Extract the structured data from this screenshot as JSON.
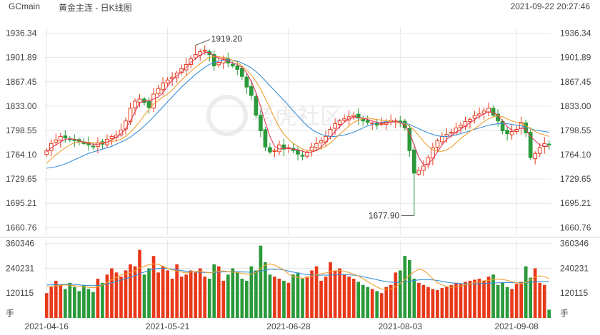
{
  "header": {
    "symbol": "GCmain",
    "title": "黄金主连 - 日K线图",
    "timestamp": "2021-09-22 20:27:46"
  },
  "watermark": "老虎社区",
  "colors": {
    "up": "#e8391a",
    "down": "#2a9a3a",
    "ma5": "#e23a5a",
    "ma10": "#f0a030",
    "ma20": "#3a8fd8",
    "grid": "#e6e6e6",
    "annotation_line": "#333333"
  },
  "chart_data": {
    "type": "candlestick",
    "price_axis": {
      "ylim": [
        1650,
        1945
      ],
      "ticks": [
        "1936.34",
        "1901.89",
        "1867.45",
        "1833.00",
        "1798.55",
        "1764.10",
        "1729.65",
        "1695.21",
        "1660.76"
      ],
      "tick_values": [
        1936.34,
        1901.89,
        1867.45,
        1833.0,
        1798.55,
        1764.1,
        1729.65,
        1695.21,
        1660.76
      ]
    },
    "volume_axis": {
      "ylim": [
        0,
        380000
      ],
      "ticks": [
        "360346",
        "240231",
        "120115",
        "手"
      ],
      "tick_values": [
        360346,
        240231,
        120115,
        0
      ]
    },
    "x_labels": [
      {
        "index": 0,
        "label": "2021-04-16"
      },
      {
        "index": 26,
        "label": "2021-05-21"
      },
      {
        "index": 52,
        "label": "2021-06-28"
      },
      {
        "index": 76,
        "label": "2021-08-03"
      },
      {
        "index": 101,
        "label": "2021-09-08"
      }
    ],
    "annotations": [
      {
        "label": "1919.20",
        "index": 32,
        "value": 1919.2,
        "kind": "high"
      },
      {
        "label": "1677.90",
        "index": 79,
        "value": 1677.9,
        "kind": "low"
      }
    ],
    "closes": [
      1770,
      1780,
      1785,
      1790,
      1788,
      1786,
      1784,
      1783,
      1780,
      1778,
      1776,
      1781,
      1779,
      1786,
      1790,
      1792,
      1799,
      1812,
      1830,
      1840,
      1843,
      1838,
      1831,
      1850,
      1858,
      1866,
      1870,
      1874,
      1880,
      1886,
      1892,
      1900,
      1906,
      1910,
      1912,
      1906,
      1890,
      1895,
      1900,
      1894,
      1890,
      1885,
      1875,
      1860,
      1848,
      1820,
      1798,
      1775,
      1768,
      1770,
      1778,
      1772,
      1774,
      1770,
      1765,
      1762,
      1768,
      1775,
      1780,
      1784,
      1790,
      1800,
      1808,
      1812,
      1815,
      1818,
      1820,
      1816,
      1812,
      1810,
      1809,
      1806,
      1808,
      1810,
      1813,
      1812,
      1810,
      1802,
      1770,
      1738,
      1742,
      1748,
      1760,
      1774,
      1784,
      1790,
      1793,
      1796,
      1802,
      1806,
      1811,
      1814,
      1820,
      1822,
      1826,
      1830,
      1820,
      1812,
      1798,
      1794,
      1797,
      1800,
      1810,
      1795,
      1760,
      1766,
      1774,
      1780,
      1778
    ],
    "ma5": [
      1768,
      1774,
      1778,
      1782,
      1786,
      1787,
      1786,
      1784,
      1782,
      1780,
      1779,
      1779,
      1780,
      1782,
      1785,
      1789,
      1794,
      1801,
      1812,
      1825,
      1838,
      1840,
      1841,
      1843,
      1846,
      1852,
      1861,
      1870,
      1876,
      1882,
      1888,
      1895,
      1900,
      1905,
      1909,
      1909,
      1904,
      1901,
      1899,
      1897,
      1894,
      1892,
      1888,
      1880,
      1868,
      1852,
      1832,
      1810,
      1790,
      1776,
      1772,
      1773,
      1773,
      1772,
      1771,
      1769,
      1767,
      1768,
      1770,
      1775,
      1782,
      1789,
      1797,
      1804,
      1810,
      1815,
      1817,
      1817,
      1816,
      1814,
      1812,
      1810,
      1809,
      1809,
      1810,
      1811,
      1810,
      1805,
      1795,
      1778,
      1760,
      1750,
      1751,
      1758,
      1768,
      1778,
      1786,
      1791,
      1796,
      1800,
      1805,
      1809,
      1814,
      1818,
      1822,
      1825,
      1824,
      1820,
      1812,
      1804,
      1799,
      1799,
      1802,
      1800,
      1790,
      1784,
      1778,
      1776,
      1776
    ],
    "ma10": [
      1752,
      1758,
      1764,
      1769,
      1774,
      1778,
      1781,
      1782,
      1782,
      1782,
      1781,
      1781,
      1781,
      1782,
      1783,
      1784,
      1786,
      1790,
      1796,
      1803,
      1811,
      1820,
      1828,
      1836,
      1841,
      1846,
      1850,
      1856,
      1863,
      1870,
      1876,
      1882,
      1888,
      1893,
      1898,
      1902,
      1903,
      1903,
      1902,
      1901,
      1898,
      1895,
      1890,
      1884,
      1877,
      1868,
      1857,
      1844,
      1830,
      1816,
      1803,
      1793,
      1786,
      1780,
      1776,
      1772,
      1770,
      1770,
      1771,
      1773,
      1776,
      1781,
      1787,
      1793,
      1799,
      1805,
      1810,
      1813,
      1815,
      1816,
      1815,
      1814,
      1813,
      1812,
      1811,
      1810,
      1809,
      1808,
      1805,
      1799,
      1791,
      1783,
      1776,
      1771,
      1769,
      1769,
      1771,
      1775,
      1781,
      1787,
      1792,
      1797,
      1801,
      1806,
      1811,
      1815,
      1818,
      1819,
      1818,
      1815,
      1812,
      1810,
      1808,
      1805,
      1801,
      1797,
      1794,
      1792,
      1790
    ],
    "ma20": [
      1745,
      1746,
      1747,
      1749,
      1751,
      1754,
      1757,
      1760,
      1763,
      1766,
      1768,
      1770,
      1772,
      1774,
      1776,
      1779,
      1782,
      1785,
      1789,
      1794,
      1799,
      1805,
      1811,
      1818,
      1825,
      1832,
      1839,
      1846,
      1853,
      1860,
      1866,
      1872,
      1878,
      1883,
      1888,
      1892,
      1895,
      1897,
      1898,
      1899,
      1898,
      1897,
      1894,
      1891,
      1887,
      1882,
      1876,
      1869,
      1862,
      1855,
      1848,
      1841,
      1834,
      1826,
      1819,
      1812,
      1805,
      1800,
      1796,
      1793,
      1791,
      1790,
      1790,
      1791,
      1792,
      1794,
      1796,
      1799,
      1802,
      1805,
      1807,
      1809,
      1810,
      1811,
      1811,
      1811,
      1810,
      1809,
      1807,
      1804,
      1801,
      1798,
      1795,
      1793,
      1791,
      1790,
      1790,
      1791,
      1792,
      1794,
      1796,
      1798,
      1800,
      1802,
      1804,
      1806,
      1807,
      1808,
      1808,
      1808,
      1807,
      1806,
      1805,
      1803,
      1801,
      1799,
      1798,
      1797,
      1796
    ],
    "volume": [
      120000,
      150000,
      180000,
      160000,
      140000,
      170000,
      150000,
      130000,
      160000,
      140000,
      125000,
      190000,
      170000,
      210000,
      240000,
      220000,
      200000,
      230000,
      260000,
      250000,
      330000,
      210000,
      240000,
      300000,
      220000,
      250000,
      230000,
      190000,
      260000,
      200000,
      210000,
      230000,
      220000,
      240000,
      200000,
      190000,
      260000,
      250000,
      180000,
      210000,
      240000,
      220000,
      190000,
      180000,
      250000,
      230000,
      350000,
      270000,
      210000,
      200000,
      190000,
      180000,
      170000,
      210000,
      220000,
      190000,
      200000,
      230000,
      250000,
      180000,
      200000,
      270000,
      230000,
      240000,
      210000,
      200000,
      190000,
      175000,
      160000,
      150000,
      140000,
      130000,
      120000,
      150000,
      160000,
      220000,
      230000,
      300000,
      280000,
      190000,
      170000,
      160000,
      150000,
      140000,
      135000,
      145000,
      150000,
      160000,
      170000,
      165000,
      175000,
      180000,
      185000,
      190000,
      180000,
      200000,
      210000,
      160000,
      170000,
      150000,
      140000,
      165000,
      175000,
      250000,
      195000,
      240000,
      170000,
      160000,
      40000
    ],
    "vol_ma5": [
      150000,
      152000,
      155000,
      158000,
      160000,
      158000,
      156000,
      152000,
      150000,
      148000,
      146000,
      150000,
      160000,
      172000,
      186000,
      196000,
      208000,
      214000,
      220000,
      228000,
      242000,
      250000,
      258000,
      262000,
      260000,
      250000,
      240000,
      232000,
      228000,
      222000,
      218000,
      222000,
      225000,
      226000,
      222000,
      218000,
      222000,
      226000,
      228000,
      224000,
      222000,
      220000,
      216000,
      212000,
      212000,
      220000,
      240000,
      256000,
      262000,
      256000,
      244000,
      232000,
      212000,
      200000,
      196000,
      192000,
      196000,
      202000,
      210000,
      214000,
      218000,
      224000,
      228000,
      230000,
      226000,
      220000,
      212000,
      203000,
      190000,
      176000,
      163000,
      150000,
      140000,
      138000,
      140000,
      150000,
      166000,
      186000,
      206000,
      224000,
      236000,
      230000,
      212000,
      190000,
      170000,
      160000,
      152000,
      148000,
      150000,
      155000,
      160000,
      165000,
      170000,
      175000,
      180000,
      182000,
      186000,
      188000,
      186000,
      182000,
      176000,
      170000,
      166000,
      172000,
      184000,
      198000,
      204000,
      200000,
      190000
    ],
    "vol_ma10": [
      160000,
      160000,
      161000,
      162000,
      163000,
      163000,
      162000,
      160000,
      158000,
      157000,
      156000,
      157000,
      160000,
      165000,
      170000,
      176000,
      183000,
      190000,
      197000,
      205000,
      214000,
      222000,
      230000,
      236000,
      240000,
      240000,
      239000,
      236000,
      233000,
      229000,
      226000,
      224000,
      222000,
      221000,
      220000,
      219000,
      220000,
      222000,
      223000,
      224000,
      224000,
      224000,
      223000,
      222000,
      221000,
      222000,
      226000,
      231000,
      235000,
      236000,
      235000,
      232000,
      227000,
      222000,
      217000,
      213000,
      210000,
      208000,
      207000,
      207000,
      207000,
      208000,
      209000,
      210000,
      210000,
      209000,
      207000,
      204000,
      200000,
      195000,
      190000,
      185000,
      180000,
      176000,
      173000,
      172000,
      173000,
      175000,
      178000,
      181000,
      184000,
      186000,
      186000,
      184000,
      181000,
      177000,
      173000,
      170000,
      168000,
      166000,
      165000,
      165000,
      165000,
      166000,
      167000,
      168000,
      169000,
      170000,
      171000,
      171000,
      171000,
      170000,
      170000,
      171000,
      173000,
      175000,
      176000,
      176000,
      175000
    ]
  }
}
